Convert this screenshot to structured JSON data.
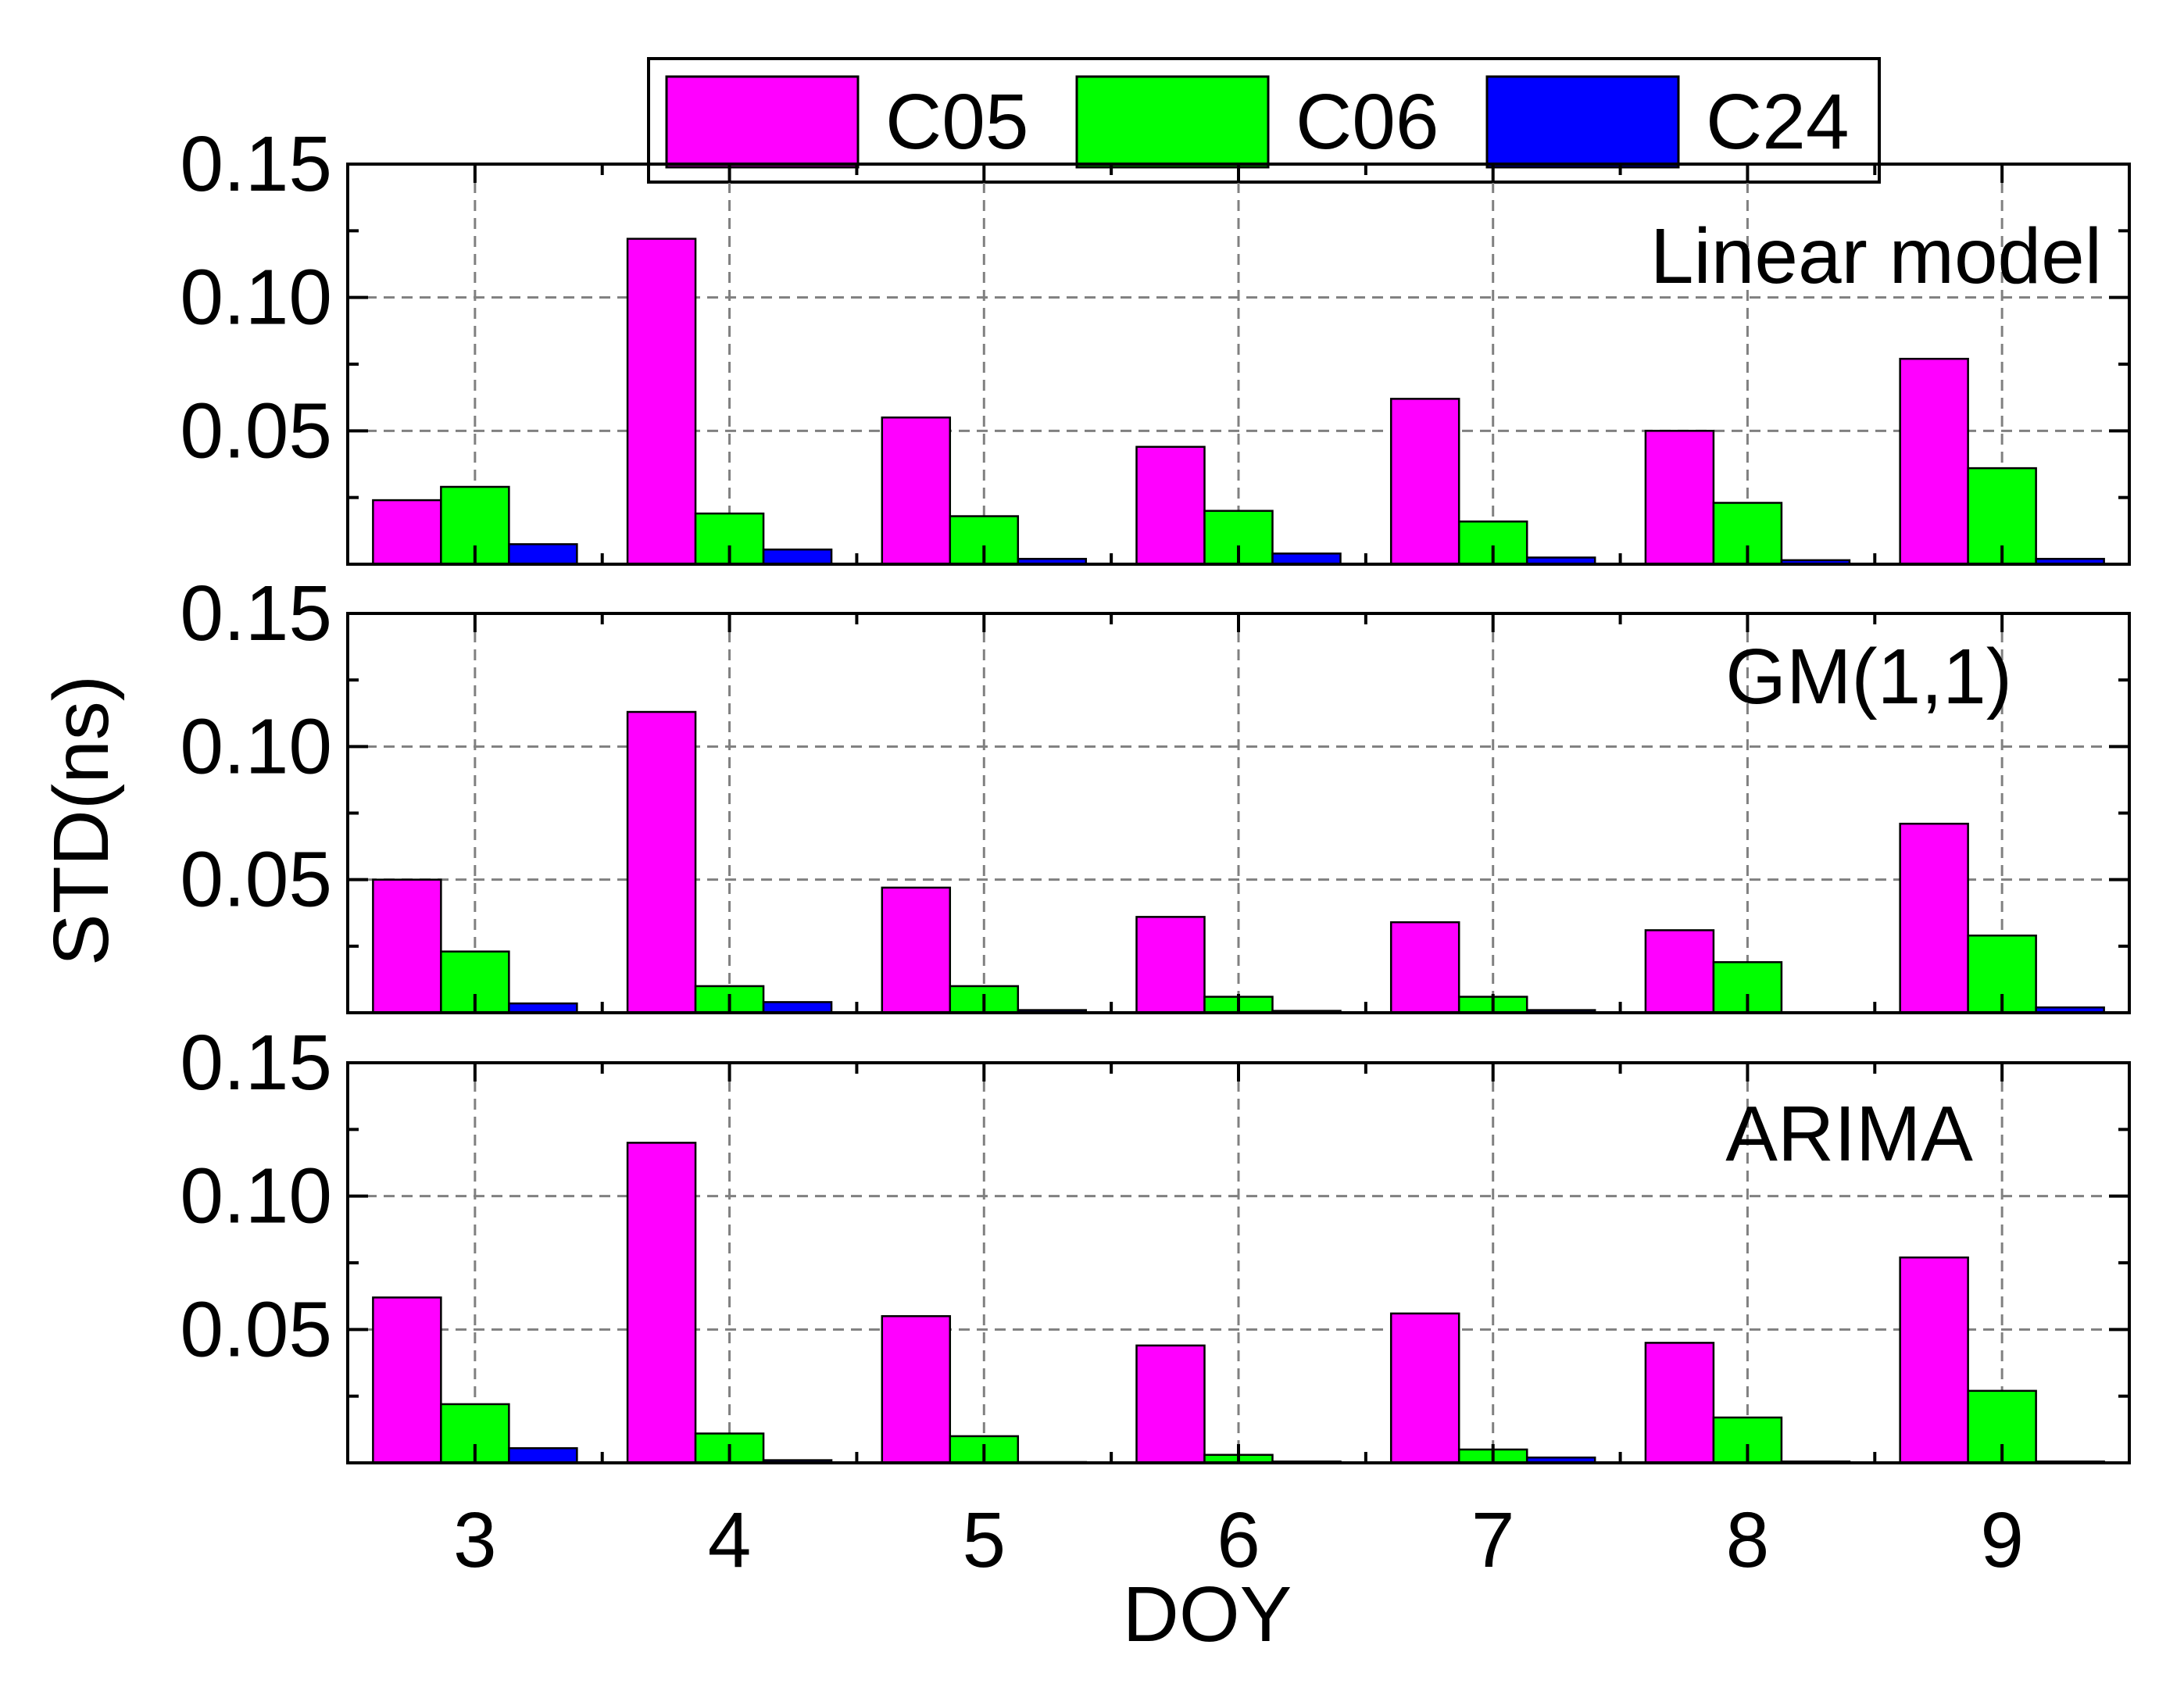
{
  "colors": {
    "C05": "#ff00ff",
    "C06": "#00ff00",
    "C24": "#0000ff",
    "grid": "#808080",
    "frame": "#000000"
  },
  "chart_data": {
    "type": "bar",
    "ylabel": "STD(ns)",
    "xlabel": "DOY",
    "categories": [
      "3",
      "4",
      "5",
      "6",
      "7",
      "8",
      "9"
    ],
    "ylim": [
      0,
      0.15
    ],
    "ytick_labels": [
      "0.05",
      "0.10",
      "0.15"
    ],
    "legend": {
      "placement": "top-center",
      "entries": [
        "C05",
        "C06",
        "C24"
      ]
    },
    "panels": [
      {
        "title": "Linear model",
        "series": [
          {
            "name": "C05",
            "values": [
              0.024,
              0.122,
              0.055,
              0.044,
              0.062,
              0.05,
              0.077
            ]
          },
          {
            "name": "C06",
            "values": [
              0.029,
              0.019,
              0.018,
              0.02,
              0.016,
              0.023,
              0.036
            ]
          },
          {
            "name": "C24",
            "values": [
              0.0075,
              0.0055,
              0.002,
              0.004,
              0.0025,
              0.0015,
              0.002
            ]
          }
        ]
      },
      {
        "title": "GM(1,1)",
        "series": [
          {
            "name": "C05",
            "values": [
              0.05,
              0.113,
              0.047,
              0.036,
              0.034,
              0.031,
              0.071
            ]
          },
          {
            "name": "C06",
            "values": [
              0.023,
              0.01,
              0.01,
              0.006,
              0.006,
              0.019,
              0.029
            ]
          },
          {
            "name": "C24",
            "values": [
              0.0035,
              0.004,
              0.001,
              0.0007,
              0.001,
              0.0,
              0.002
            ]
          }
        ]
      },
      {
        "title": "ARIMA",
        "series": [
          {
            "name": "C05",
            "values": [
              0.062,
              0.12,
              0.055,
              0.044,
              0.056,
              0.045,
              0.077
            ]
          },
          {
            "name": "C06",
            "values": [
              0.022,
              0.011,
              0.01,
              0.003,
              0.005,
              0.017,
              0.027
            ]
          },
          {
            "name": "C24",
            "values": [
              0.0055,
              0.001,
              0.0003,
              0.0005,
              0.002,
              0.0005,
              0.0005
            ]
          }
        ]
      }
    ]
  }
}
